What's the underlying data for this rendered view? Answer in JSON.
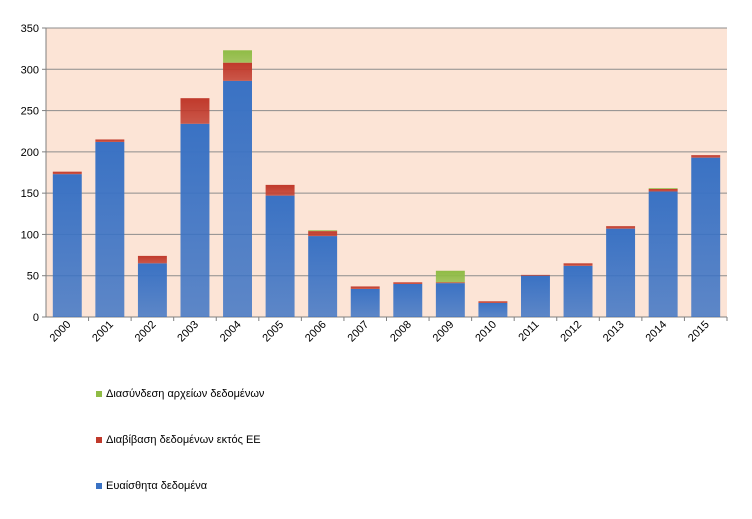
{
  "chart_data": {
    "type": "bar",
    "stacked": true,
    "categories": [
      "2000",
      "2001",
      "2002",
      "2003",
      "2004",
      "2005",
      "2006",
      "2007",
      "2008",
      "2009",
      "2010",
      "2011",
      "2012",
      "2013",
      "2014",
      "2015"
    ],
    "series": [
      {
        "name": "Ευαίσθητα δεδομένα",
        "color": "#3a72c4",
        "values": [
          173,
          212,
          65,
          234,
          286,
          147,
          98,
          34,
          40,
          41,
          17,
          50,
          62,
          107,
          152,
          193
        ]
      },
      {
        "name": "Διαβίβαση δεδομένων εκτός ΕΕ",
        "color": "#c0392b",
        "values": [
          3,
          3,
          9,
          31,
          22,
          13,
          6,
          3,
          2,
          1,
          2,
          1,
          3,
          3,
          3,
          3
        ]
      },
      {
        "name": "Διασύνδεση αρχείων δεδομένων",
        "color": "#8fbc45",
        "values": [
          0,
          0,
          0,
          0,
          15,
          0,
          1,
          0,
          0,
          14,
          0,
          0,
          0,
          0,
          1,
          0
        ]
      }
    ],
    "yticks": [
      0,
      50,
      100,
      150,
      200,
      250,
      300,
      350
    ],
    "ylim": [
      0,
      350
    ],
    "grid": true,
    "plot_background": "#fce4d6",
    "legend_position": "bottom-left",
    "title": "",
    "xlabel": "",
    "ylabel": ""
  }
}
